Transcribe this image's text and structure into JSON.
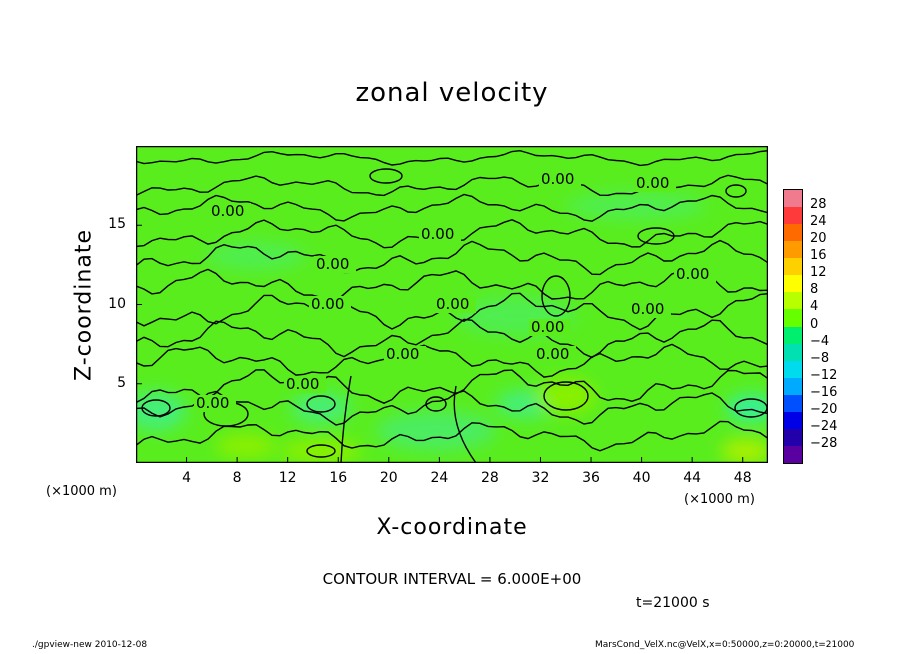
{
  "chart_data": {
    "type": "heatmap",
    "title": "zonal velocity",
    "xlabel": "X-coordinate",
    "ylabel": "Z-coordinate",
    "x_unit": "(×1000 m)",
    "y_unit": "(×1000 m)",
    "x_ticks": [
      "4",
      "8",
      "12",
      "16",
      "20",
      "24",
      "28",
      "32",
      "36",
      "40",
      "44",
      "48"
    ],
    "y_ticks": [
      "5",
      "10",
      "15"
    ],
    "xlim": [
      0,
      50
    ],
    "ylim": [
      0,
      20
    ],
    "colorbar": {
      "labels": [
        "28",
        "24",
        "20",
        "16",
        "12",
        "8",
        "4",
        "0",
        "−4",
        "−8",
        "−12",
        "−16",
        "−20",
        "−24",
        "−28"
      ],
      "colors": [
        "#f07a8e",
        "#ff3a3a",
        "#ff6a00",
        "#ff9a00",
        "#ffd000",
        "#ffff00",
        "#b8ff00",
        "#66ff00",
        "#00ef6e",
        "#00e0b0",
        "#00dcee",
        "#00aaff",
        "#0050ff",
        "#0000e6",
        "#2200aa",
        "#5a00a0"
      ]
    },
    "contour_label": "0.00",
    "contour_interval": "CONTOUR INTERVAL = 6.000E+00",
    "time": "t=21000 s"
  },
  "footer": {
    "left": "./gpview-new  2010-12-08",
    "right": "MarsCond_VelX.nc@VelX,x=0:50000,z=0:20000,t=21000"
  }
}
